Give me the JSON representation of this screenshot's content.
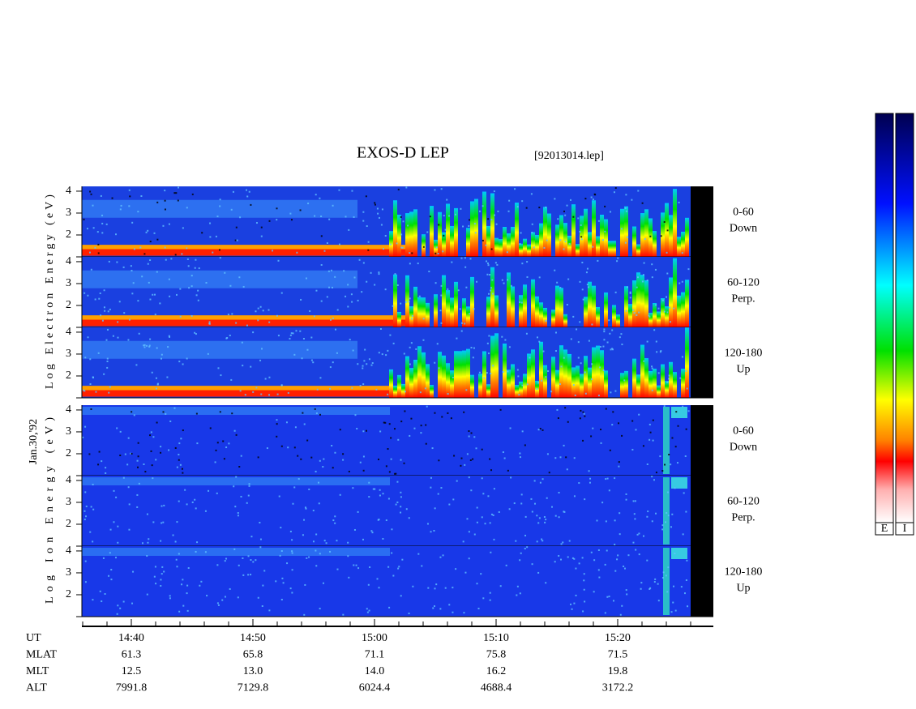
{
  "title": "EXOS-D LEP",
  "file": "[92013014.lep]",
  "date": "Jan.30,'92",
  "electron": {
    "axis_label": "Log Electron Energy (eV)",
    "panels": [
      {
        "angle": "0-60",
        "direction": "Down"
      },
      {
        "angle": "60-120",
        "direction": "Perp."
      },
      {
        "angle": "120-180",
        "direction": "Up"
      }
    ]
  },
  "ion": {
    "axis_label": "Log Ion Energy (eV)",
    "panels": [
      {
        "angle": "0-60",
        "direction": "Down"
      },
      {
        "angle": "60-120",
        "direction": "Perp."
      },
      {
        "angle": "120-180",
        "direction": "Up"
      }
    ]
  },
  "yticks": [
    2,
    3,
    4
  ],
  "ylim": [
    1,
    4.22
  ],
  "time_axis": {
    "rows": [
      {
        "label": "UT",
        "values": [
          "14:40",
          "14:50",
          "15:00",
          "15:10",
          "15:20"
        ]
      },
      {
        "label": "MLAT",
        "values": [
          "61.3",
          "65.8",
          "71.1",
          "75.8",
          "71.5"
        ]
      },
      {
        "label": "MLT",
        "values": [
          "12.5",
          "13.0",
          "14.0",
          "16.2",
          "19.8"
        ]
      },
      {
        "label": "ALT",
        "values": [
          "7991.8",
          "7129.8",
          "6024.4",
          "4688.4",
          "3172.2"
        ]
      }
    ]
  },
  "colorbar": {
    "labels": [
      "E",
      "I"
    ]
  }
}
